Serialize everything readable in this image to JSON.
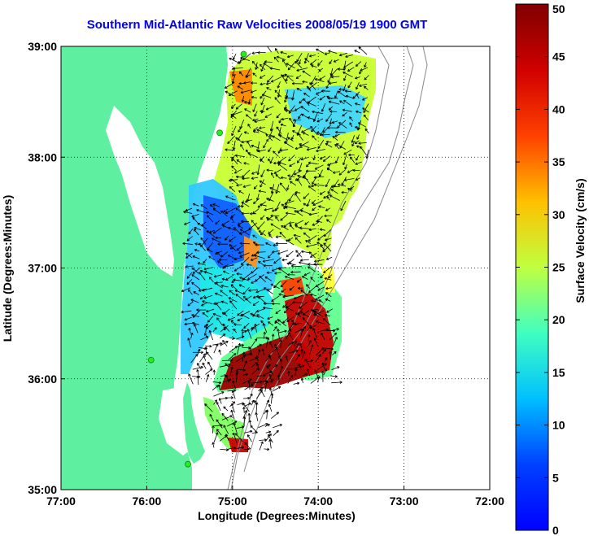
{
  "title": "Southern Mid-Atlantic Raw Velocities 2008/05/19 1900 GMT",
  "colors": {
    "title": "#0000ee",
    "land": "#5ef0a0",
    "water": "#ffffff",
    "grid": "#000000",
    "arrows": "#000000",
    "station": "#22ee22",
    "bathymetry": "#888888"
  },
  "map": {
    "xlabel": "Longitude (Degrees:Minutes)",
    "ylabel": "Latitude (Degrees:Minutes)",
    "x_ticks": [
      {
        "value": -77,
        "label": "77:00"
      },
      {
        "value": -76,
        "label": "76:00"
      },
      {
        "value": -75,
        "label": "75:00"
      },
      {
        "value": -74,
        "label": "74:00"
      },
      {
        "value": -73,
        "label": "73:00"
      },
      {
        "value": -72,
        "label": "72:00"
      }
    ],
    "y_ticks": [
      {
        "value": 39,
        "label": "39:00"
      },
      {
        "value": 38,
        "label": "38:00"
      },
      {
        "value": 37,
        "label": "37:00"
      },
      {
        "value": 36,
        "label": "36:00"
      },
      {
        "value": 35,
        "label": "35:00"
      }
    ],
    "lon_range": [
      -77,
      -72
    ],
    "lat_range": [
      35,
      39
    ],
    "grid": true,
    "grid_style": "dotted"
  },
  "colorbar": {
    "label": "Surface Velocity (cm/s)",
    "range": [
      0,
      50
    ],
    "ticks": [
      {
        "value": 50,
        "label": "50"
      },
      {
        "value": 45,
        "label": "45"
      },
      {
        "value": 40,
        "label": "40"
      },
      {
        "value": 35,
        "label": "35"
      },
      {
        "value": 30,
        "label": "30"
      },
      {
        "value": 25,
        "label": "25"
      },
      {
        "value": 20,
        "label": "20"
      },
      {
        "value": 15,
        "label": "15"
      },
      {
        "value": 10,
        "label": "10"
      },
      {
        "value": 5,
        "label": "5"
      },
      {
        "value": 0,
        "label": "0"
      }
    ],
    "colormap": "jet"
  },
  "stations": [
    {
      "lon": -74.87,
      "lat": 38.93
    },
    {
      "lon": -75.15,
      "lat": 38.22
    },
    {
      "lon": -75.95,
      "lat": 36.17
    },
    {
      "lon": -75.52,
      "lat": 35.23
    }
  ]
}
